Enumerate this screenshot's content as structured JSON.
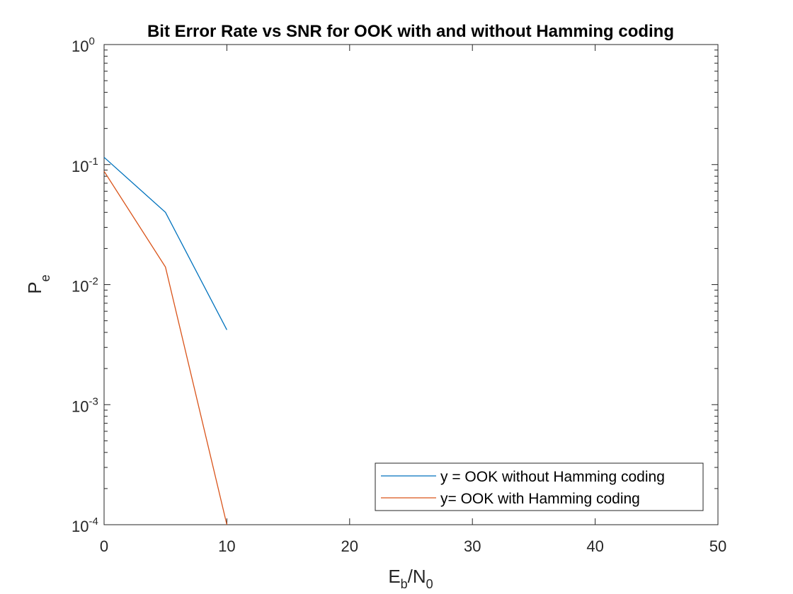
{
  "chart_data": {
    "type": "line",
    "title": "Bit Error Rate vs SNR for OOK with and without Hamming coding",
    "xlabel": {
      "main": "E",
      "sub1": "b",
      "mid": "/N",
      "sub2": "0"
    },
    "ylabel": {
      "main": "P",
      "sub": "e"
    },
    "x_scale": "linear",
    "y_scale": "log",
    "xlim": [
      0,
      50
    ],
    "ylim": [
      0.0001,
      1
    ],
    "x_ticks": [
      "0",
      "10",
      "20",
      "30",
      "40",
      "50"
    ],
    "y_ticks": [
      {
        "base": "10",
        "exp": "0"
      },
      {
        "base": "10",
        "exp": "-1"
      },
      {
        "base": "10",
        "exp": "-2"
      },
      {
        "base": "10",
        "exp": "-3"
      },
      {
        "base": "10",
        "exp": "-4"
      }
    ],
    "grid": false,
    "box": true,
    "legend_position": "bottom-right",
    "series": [
      {
        "name": "y = OOK without Hamming coding",
        "color": "#0072BD",
        "x": [
          0,
          5,
          10
        ],
        "y": [
          0.115,
          0.04,
          0.0042
        ]
      },
      {
        "name": "y= OOK with Hamming coding",
        "color": "#D95319",
        "x": [
          0,
          5,
          10
        ],
        "y": [
          0.088,
          0.014,
          0.0001
        ]
      }
    ]
  }
}
